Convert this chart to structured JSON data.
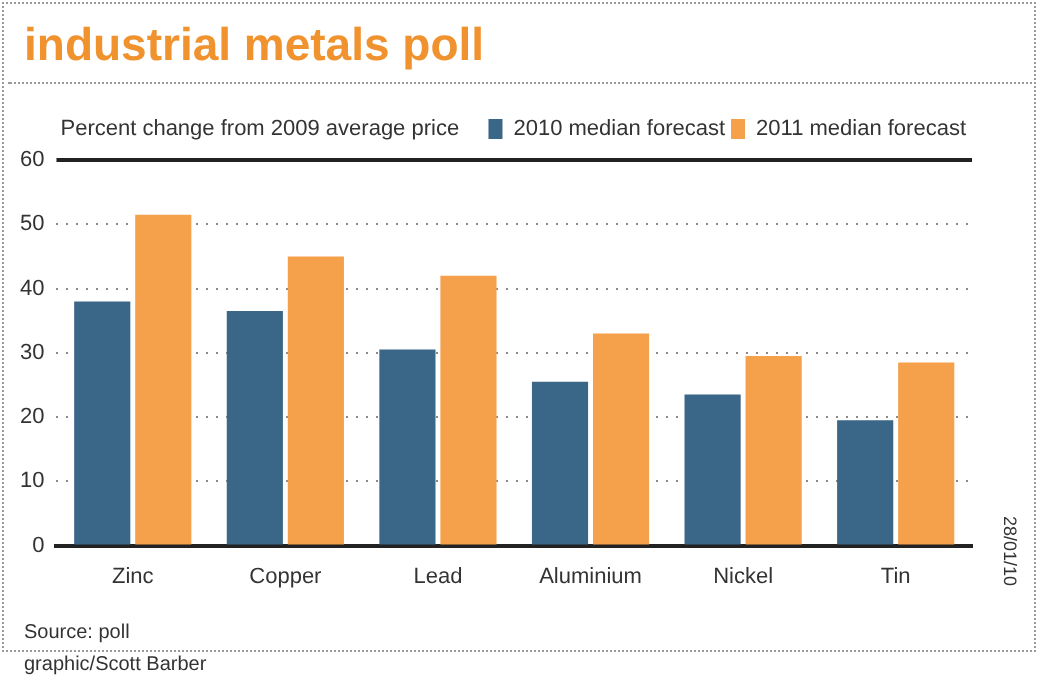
{
  "chart_data": {
    "type": "bar",
    "title": "industrial metals poll",
    "ylabel": "Percent change from 2009 average price",
    "categories": [
      "Zinc",
      "Copper",
      "Lead",
      "Aluminium",
      "Nickel",
      "Tin"
    ],
    "series": [
      {
        "name": "2010 median forecast",
        "color": "#3a6688",
        "values": [
          38,
          36.5,
          30.5,
          25.5,
          23.5,
          19.5
        ]
      },
      {
        "name": "2011 median forecast",
        "color": "#f5a04a",
        "values": [
          51.5,
          45,
          42,
          33,
          29.5,
          28.5
        ]
      }
    ],
    "ylim": [
      0,
      60
    ],
    "yticks": [
      0,
      10,
      20,
      30,
      40,
      50,
      60
    ],
    "grid": "y",
    "legend": "top right",
    "annotations": [
      "28/01/10",
      "Source: poll",
      "graphic/Scott Barber"
    ]
  }
}
